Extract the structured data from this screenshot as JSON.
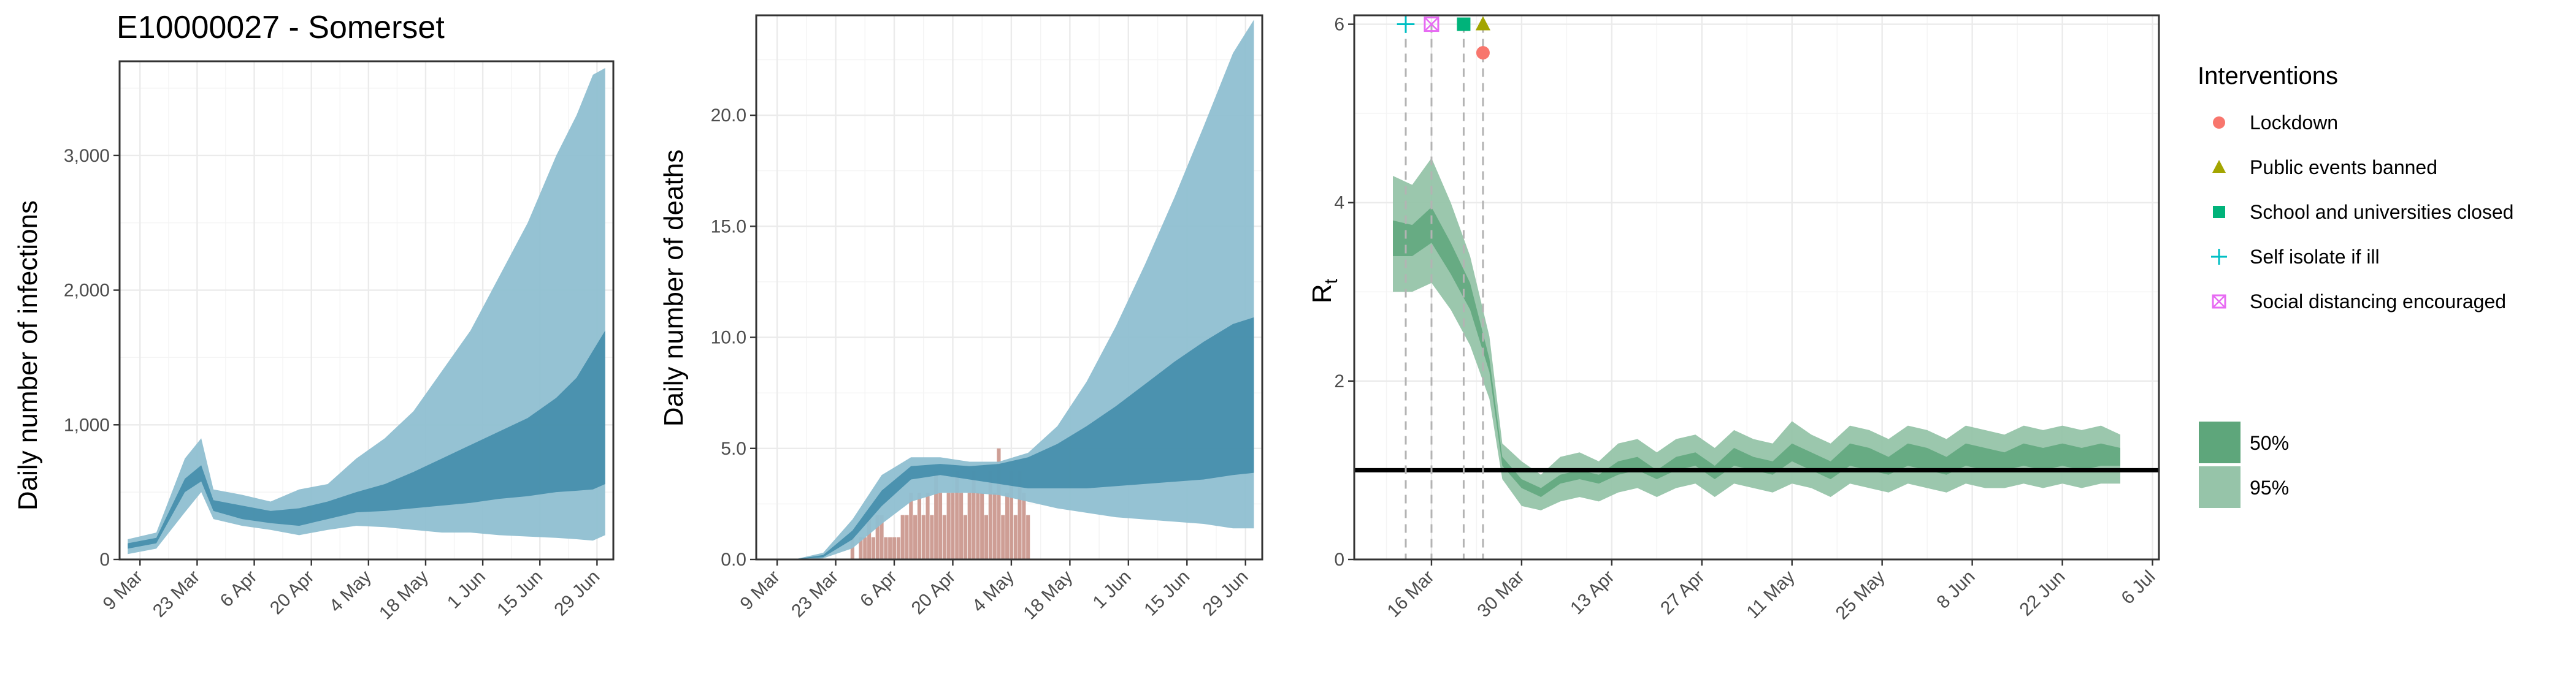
{
  "chart_data": [
    {
      "type": "area",
      "title": "E10000027 - Somerset",
      "xlabel": "",
      "ylabel": "Daily number of infections",
      "x_range": [
        "2020-03-04",
        "2020-07-03"
      ],
      "ylim": [
        0,
        3700
      ],
      "x_ticks": [
        {
          "date": "2020-03-09",
          "label": "9 Mar"
        },
        {
          "date": "2020-03-23",
          "label": "23 Mar"
        },
        {
          "date": "2020-04-06",
          "label": "6 Apr"
        },
        {
          "date": "2020-04-20",
          "label": "20 Apr"
        },
        {
          "date": "2020-05-04",
          "label": "4 May"
        },
        {
          "date": "2020-05-18",
          "label": "18 May"
        },
        {
          "date": "2020-06-01",
          "label": "1 Jun"
        },
        {
          "date": "2020-06-15",
          "label": "15 Jun"
        },
        {
          "date": "2020-06-29",
          "label": "29 Jun"
        }
      ],
      "y_ticks": [
        {
          "value": 0,
          "label": "0"
        },
        {
          "value": 1000,
          "label": "1,000"
        },
        {
          "value": 2000,
          "label": "2,000"
        },
        {
          "value": 3000,
          "label": "3,000"
        }
      ],
      "grid": true,
      "colors": {
        "band95": "#8fbfd1",
        "band50": "#3e8aa8"
      },
      "band_x": [
        "2020-03-06",
        "2020-03-13",
        "2020-03-20",
        "2020-03-24",
        "2020-03-27",
        "2020-04-03",
        "2020-04-10",
        "2020-04-17",
        "2020-04-24",
        "2020-05-01",
        "2020-05-08",
        "2020-05-15",
        "2020-05-22",
        "2020-05-29",
        "2020-06-05",
        "2020-06-12",
        "2020-06-19",
        "2020-06-24",
        "2020-06-28",
        "2020-07-01"
      ],
      "series": [
        {
          "interval": "95%",
          "lower": [
            40,
            80,
            350,
            500,
            300,
            250,
            220,
            180,
            220,
            250,
            240,
            220,
            200,
            200,
            180,
            170,
            160,
            150,
            140,
            180
          ],
          "upper": [
            150,
            200,
            750,
            900,
            520,
            480,
            430,
            520,
            560,
            750,
            900,
            1100,
            1400,
            1700,
            2100,
            2500,
            3000,
            3300,
            3600,
            3650
          ]
        },
        {
          "interval": "50%",
          "lower": [
            80,
            120,
            500,
            580,
            360,
            300,
            270,
            250,
            300,
            350,
            360,
            380,
            400,
            420,
            450,
            470,
            500,
            510,
            520,
            560
          ],
          "upper": [
            120,
            160,
            600,
            700,
            440,
            400,
            360,
            380,
            430,
            500,
            560,
            650,
            750,
            850,
            950,
            1050,
            1200,
            1350,
            1550,
            1700
          ]
        }
      ]
    },
    {
      "type": "area",
      "title": "",
      "xlabel": "",
      "ylabel": "Daily number of deaths",
      "x_range": [
        "2020-03-04",
        "2020-07-03"
      ],
      "ylim": [
        0,
        24.5
      ],
      "x_ticks": [
        {
          "date": "2020-03-09",
          "label": "9 Mar"
        },
        {
          "date": "2020-03-23",
          "label": "23 Mar"
        },
        {
          "date": "2020-04-06",
          "label": "6 Apr"
        },
        {
          "date": "2020-04-20",
          "label": "20 Apr"
        },
        {
          "date": "2020-05-04",
          "label": "4 May"
        },
        {
          "date": "2020-05-18",
          "label": "18 May"
        },
        {
          "date": "2020-06-01",
          "label": "1 Jun"
        },
        {
          "date": "2020-06-15",
          "label": "15 Jun"
        },
        {
          "date": "2020-06-29",
          "label": "29 Jun"
        }
      ],
      "y_ticks": [
        {
          "value": 0,
          "label": "0.0"
        },
        {
          "value": 5,
          "label": "5.0"
        },
        {
          "value": 10,
          "label": "10.0"
        },
        {
          "value": 15,
          "label": "15.0"
        },
        {
          "value": 20,
          "label": "20.0"
        }
      ],
      "grid": true,
      "colors": {
        "band95": "#8fbfd1",
        "band50": "#3e8aa8",
        "bars": "#c9938a"
      },
      "band_x": [
        "2020-03-06",
        "2020-03-13",
        "2020-03-20",
        "2020-03-27",
        "2020-04-03",
        "2020-04-10",
        "2020-04-17",
        "2020-04-24",
        "2020-05-01",
        "2020-05-08",
        "2020-05-15",
        "2020-05-22",
        "2020-05-29",
        "2020-06-05",
        "2020-06-12",
        "2020-06-19",
        "2020-06-26",
        "2020-07-01"
      ],
      "series": [
        {
          "interval": "95%",
          "lower": [
            0,
            0,
            0.05,
            0.5,
            1.6,
            2.6,
            3.0,
            3.0,
            2.9,
            2.6,
            2.3,
            2.1,
            1.9,
            1.8,
            1.7,
            1.6,
            1.4,
            1.4
          ],
          "upper": [
            0,
            0,
            0.3,
            1.8,
            3.8,
            4.6,
            4.6,
            4.4,
            4.4,
            4.8,
            6.0,
            8.0,
            10.5,
            13.3,
            16.3,
            19.5,
            22.8,
            24.3
          ]
        },
        {
          "interval": "50%",
          "lower": [
            0,
            0,
            0.1,
            0.9,
            2.4,
            3.6,
            3.8,
            3.6,
            3.4,
            3.2,
            3.2,
            3.2,
            3.3,
            3.4,
            3.5,
            3.6,
            3.8,
            3.9
          ],
          "upper": [
            0,
            0,
            0.2,
            1.3,
            3.1,
            4.2,
            4.3,
            4.2,
            4.3,
            4.6,
            5.2,
            6.0,
            6.9,
            7.9,
            8.9,
            9.8,
            10.6,
            10.9
          ]
        }
      ],
      "observed_deaths": {
        "dates": [
          "2020-03-26",
          "2020-03-27",
          "2020-03-28",
          "2020-03-29",
          "2020-03-30",
          "2020-03-31",
          "2020-04-01",
          "2020-04-02",
          "2020-04-03",
          "2020-04-04",
          "2020-04-05",
          "2020-04-06",
          "2020-04-07",
          "2020-04-08",
          "2020-04-09",
          "2020-04-10",
          "2020-04-11",
          "2020-04-12",
          "2020-04-13",
          "2020-04-14",
          "2020-04-15",
          "2020-04-16",
          "2020-04-17",
          "2020-04-18",
          "2020-04-19",
          "2020-04-20",
          "2020-04-21",
          "2020-04-22",
          "2020-04-23",
          "2020-04-24",
          "2020-04-25",
          "2020-04-26",
          "2020-04-27",
          "2020-04-28",
          "2020-04-29",
          "2020-04-30",
          "2020-05-01",
          "2020-05-02",
          "2020-05-03",
          "2020-05-04",
          "2020-05-05",
          "2020-05-06",
          "2020-05-07",
          "2020-05-08"
        ],
        "values": [
          0,
          1,
          0,
          1,
          1,
          2,
          1,
          2,
          2,
          1,
          1,
          1,
          1,
          2,
          2,
          3,
          2,
          3,
          2,
          3,
          2,
          4,
          3,
          2,
          3,
          3,
          4,
          3,
          2,
          3,
          4,
          3,
          3,
          2,
          4,
          3,
          5,
          2,
          3,
          4,
          2,
          4,
          3,
          2
        ]
      }
    },
    {
      "type": "area",
      "title": "",
      "xlabel": "",
      "ylabel": "R",
      "ylabel_subscript": "t",
      "x_range": [
        "2020-03-04",
        "2020-07-07"
      ],
      "ylim": [
        0,
        6.1
      ],
      "x_ticks": [
        {
          "date": "2020-03-16",
          "label": "16 Mar"
        },
        {
          "date": "2020-03-30",
          "label": "30 Mar"
        },
        {
          "date": "2020-04-13",
          "label": "13 Apr"
        },
        {
          "date": "2020-04-27",
          "label": "27 Apr"
        },
        {
          "date": "2020-05-11",
          "label": "11 May"
        },
        {
          "date": "2020-05-25",
          "label": "25 May"
        },
        {
          "date": "2020-06-08",
          "label": "8 Jun"
        },
        {
          "date": "2020-06-22",
          "label": "22 Jun"
        },
        {
          "date": "2020-07-06",
          "label": "6 Jul"
        }
      ],
      "y_ticks": [
        {
          "value": 0,
          "label": "0"
        },
        {
          "value": 2,
          "label": "2"
        },
        {
          "value": 4,
          "label": "4"
        },
        {
          "value": 6,
          "label": "6"
        }
      ],
      "grid": true,
      "reference_line": 1,
      "colors": {
        "band95": "#96c4a9",
        "band50": "#5ea67b",
        "reference": "#000000",
        "vlines": "#b3b3b3"
      },
      "band_x": [
        "2020-03-10",
        "2020-03-13",
        "2020-03-16",
        "2020-03-19",
        "2020-03-22",
        "2020-03-25",
        "2020-03-27",
        "2020-03-30",
        "2020-04-02",
        "2020-04-05",
        "2020-04-08",
        "2020-04-11",
        "2020-04-14",
        "2020-04-17",
        "2020-04-20",
        "2020-04-23",
        "2020-04-26",
        "2020-04-29",
        "2020-05-02",
        "2020-05-05",
        "2020-05-08",
        "2020-05-11",
        "2020-05-14",
        "2020-05-17",
        "2020-05-20",
        "2020-05-23",
        "2020-05-26",
        "2020-05-29",
        "2020-06-01",
        "2020-06-04",
        "2020-06-07",
        "2020-06-10",
        "2020-06-13",
        "2020-06-16",
        "2020-06-19",
        "2020-06-22",
        "2020-06-25",
        "2020-06-28",
        "2020-07-01"
      ],
      "series": [
        {
          "interval": "95%",
          "lower": [
            3.0,
            3.0,
            3.1,
            2.8,
            2.4,
            1.8,
            0.9,
            0.6,
            0.55,
            0.65,
            0.7,
            0.65,
            0.75,
            0.8,
            0.7,
            0.8,
            0.85,
            0.7,
            0.85,
            0.8,
            0.75,
            0.85,
            0.8,
            0.7,
            0.85,
            0.8,
            0.75,
            0.85,
            0.8,
            0.75,
            0.85,
            0.8,
            0.8,
            0.85,
            0.8,
            0.85,
            0.8,
            0.85,
            0.85
          ],
          "upper": [
            4.3,
            4.2,
            4.5,
            4.0,
            3.4,
            2.5,
            1.3,
            1.1,
            0.95,
            1.15,
            1.2,
            1.1,
            1.3,
            1.35,
            1.2,
            1.35,
            1.4,
            1.25,
            1.45,
            1.35,
            1.3,
            1.55,
            1.4,
            1.3,
            1.5,
            1.45,
            1.35,
            1.5,
            1.45,
            1.35,
            1.5,
            1.45,
            1.4,
            1.5,
            1.45,
            1.5,
            1.45,
            1.5,
            1.4
          ]
        },
        {
          "interval": "50%",
          "lower": [
            3.4,
            3.4,
            3.55,
            3.2,
            2.8,
            2.1,
            1.05,
            0.8,
            0.7,
            0.85,
            0.9,
            0.85,
            0.95,
            1.0,
            0.9,
            1.0,
            1.05,
            0.9,
            1.05,
            1.0,
            0.95,
            1.1,
            1.0,
            0.9,
            1.05,
            1.0,
            0.95,
            1.05,
            1.0,
            0.95,
            1.05,
            1.0,
            1.0,
            1.05,
            1.0,
            1.05,
            1.0,
            1.05,
            1.05
          ],
          "upper": [
            3.8,
            3.75,
            3.95,
            3.55,
            3.1,
            2.25,
            1.15,
            0.9,
            0.8,
            0.95,
            1.0,
            0.95,
            1.1,
            1.15,
            1.0,
            1.15,
            1.2,
            1.05,
            1.25,
            1.15,
            1.1,
            1.3,
            1.2,
            1.1,
            1.3,
            1.25,
            1.15,
            1.3,
            1.25,
            1.15,
            1.3,
            1.25,
            1.2,
            1.3,
            1.25,
            1.3,
            1.25,
            1.3,
            1.25
          ]
        }
      ],
      "interventions": [
        {
          "name": "Self isolate if ill",
          "date": "2020-03-12",
          "marker": "plus",
          "color": "#00bfc4"
        },
        {
          "name": "Social distancing encouraged",
          "date": "2020-03-16",
          "marker": "square-x",
          "color": "#e76bf3"
        },
        {
          "name": "School and universities closed",
          "date": "2020-03-21",
          "marker": "square",
          "color": "#00b37a"
        },
        {
          "name": "Public events banned",
          "date": "2020-03-24",
          "marker": "triangle",
          "color": "#a3a500"
        },
        {
          "name": "Lockdown",
          "date": "2020-03-24",
          "marker": "circle",
          "color": "#f8766d"
        }
      ]
    }
  ],
  "legend": {
    "interventions_title": "Interventions",
    "interventions": [
      {
        "label": "Lockdown",
        "marker": "circle",
        "color": "#f8766d"
      },
      {
        "label": "Public events banned",
        "marker": "triangle",
        "color": "#a3a500"
      },
      {
        "label": "School and universities closed",
        "marker": "square",
        "color": "#00b37a"
      },
      {
        "label": "Self isolate if ill",
        "marker": "plus",
        "color": "#00bfc4"
      },
      {
        "label": "Social distancing encouraged",
        "marker": "square-x",
        "color": "#e76bf3"
      }
    ],
    "intervals": [
      {
        "label": "50%",
        "color": "#5ea67b"
      },
      {
        "label": "95%",
        "color": "#96c4a9"
      }
    ]
  }
}
